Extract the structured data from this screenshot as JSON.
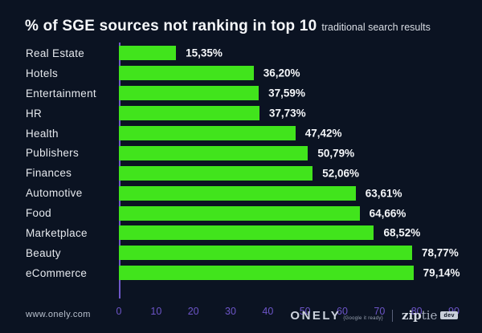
{
  "title": {
    "main": "% of SGE sources not ranking in top 10",
    "suffix": "traditional search results"
  },
  "chart_data": {
    "type": "bar",
    "orientation": "horizontal",
    "title": "% of SGE sources not ranking in top 10 traditional search results",
    "categories": [
      "Real Estate",
      "Hotels",
      "Entertainment",
      "HR",
      "Health",
      "Publishers",
      "Finances",
      "Automotive",
      "Food",
      "Marketplace",
      "Beauty",
      "eCommerce"
    ],
    "values": [
      15.35,
      36.2,
      37.59,
      37.73,
      47.42,
      50.79,
      52.06,
      63.61,
      64.66,
      68.52,
      78.77,
      79.14
    ],
    "value_labels": [
      "15,35%",
      "36,20%",
      "37,59%",
      "37,73%",
      "47,42%",
      "50,79%",
      "52,06%",
      "63,61%",
      "64,66%",
      "68,52%",
      "78,77%",
      "79,14%"
    ],
    "xlabel": "",
    "ylabel": "",
    "xlim": [
      0,
      90
    ],
    "x_ticks": [
      0,
      10,
      20,
      30,
      40,
      50,
      60,
      70,
      80,
      90
    ],
    "grid": false,
    "legend": false,
    "bar_color": "#41e41c",
    "axis_color": "#6f58c9",
    "tick_label_color": "#6d55c8",
    "background_color": "#0b1322"
  },
  "footer": {
    "website": "www.onely.com",
    "onely_word": "ONELY",
    "onely_tagline": "{Google it ready}",
    "ziptie_zip": "zip",
    "ziptie_tie": "tie",
    "ziptie_badge": "dev"
  }
}
